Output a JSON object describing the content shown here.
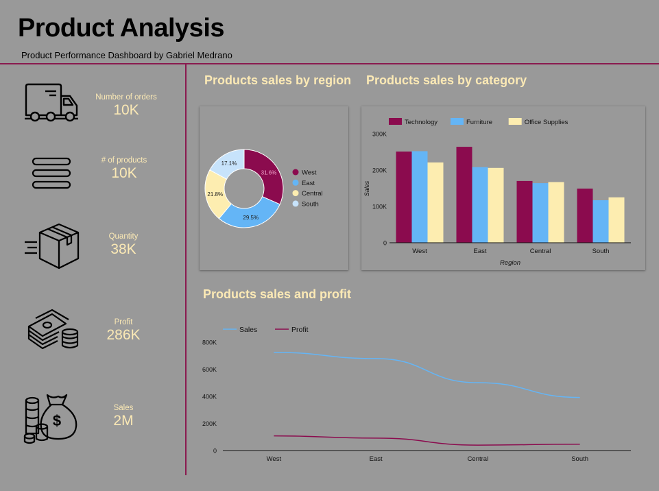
{
  "header": {
    "title": "Product Analysis",
    "subtitle": "Product Performance Dashboard by Gabriel Medrano"
  },
  "kpis": [
    {
      "label": "Number of orders",
      "value": "10K",
      "icon": "delivery-truck-icon"
    },
    {
      "label": "# of products",
      "value": "10K",
      "icon": "list-lines-icon"
    },
    {
      "label": "Quantity",
      "value": "38K",
      "icon": "package-box-icon"
    },
    {
      "label": "Profit",
      "value": "286K",
      "icon": "cash-stack-icon"
    },
    {
      "label": "Sales",
      "value": "2M",
      "icon": "money-bag-icon"
    }
  ],
  "sections": {
    "region_title": "Products sales by region",
    "category_title": "Products sales by category",
    "profit_title": "Products sales and profit"
  },
  "colors": {
    "west": "#8b0b4e",
    "east": "#64b5f6",
    "central": "#fdedb0",
    "south": "#c7e3fb",
    "technology": "#8b0b4e",
    "furniture": "#64b5f6",
    "office": "#fdedb0",
    "sales_line": "#64b5f6",
    "profit_line": "#8b0b4e",
    "accent_text": "#fbe9b5"
  },
  "chart_data": [
    {
      "type": "pie",
      "labels": [
        "West",
        "East",
        "Central",
        "South"
      ],
      "values": [
        31.6,
        29.5,
        21.8,
        17.1
      ],
      "value_labels": [
        "31.6%",
        "29.5%",
        "21.8%",
        "17.1%"
      ],
      "legend": "right"
    },
    {
      "type": "bar",
      "categories": [
        "West",
        "East",
        "Central",
        "South"
      ],
      "series": [
        {
          "name": "Technology",
          "values": [
            251000,
            264000,
            170000,
            149000
          ]
        },
        {
          "name": "Furniture",
          "values": [
            252000,
            208000,
            164000,
            117000
          ]
        },
        {
          "name": "Office Supplies",
          "values": [
            221000,
            206000,
            167000,
            125000
          ]
        }
      ],
      "xlabel": "Region",
      "ylabel": "Sales",
      "ylim": [
        0,
        300000
      ],
      "yticks": [
        0,
        100000,
        200000,
        300000
      ],
      "ytick_labels": [
        "0",
        "100K",
        "200K",
        "300K"
      ],
      "legend": "top-left"
    },
    {
      "type": "line",
      "categories": [
        "West",
        "East",
        "Central",
        "South"
      ],
      "series": [
        {
          "name": "Sales",
          "values": [
            725000,
            679000,
            501000,
            392000
          ]
        },
        {
          "name": "Profit",
          "values": [
            108000,
            92000,
            40000,
            47000
          ]
        }
      ],
      "ylim": [
        0,
        800000
      ],
      "yticks": [
        0,
        200000,
        400000,
        600000,
        800000
      ],
      "ytick_labels": [
        "0",
        "200K",
        "400K",
        "600K",
        "800K"
      ],
      "legend": "top-left"
    }
  ]
}
